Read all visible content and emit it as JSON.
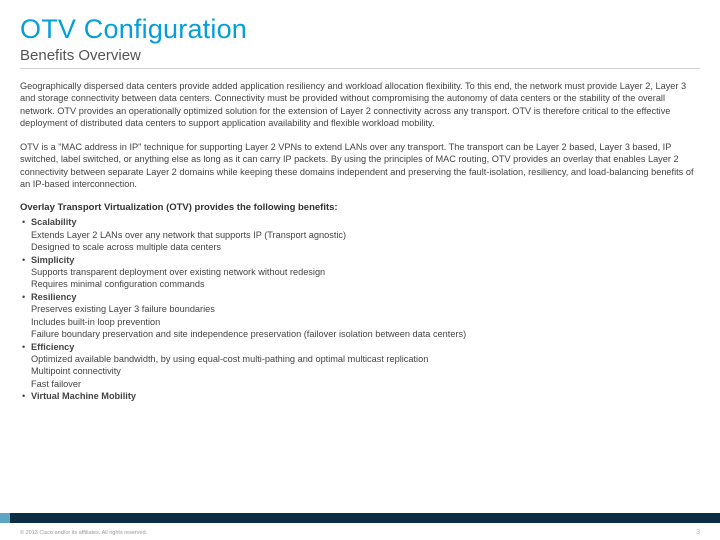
{
  "title": "OTV Configuration",
  "subtitle": "Benefits Overview",
  "paragraphs": [
    "Geographically dispersed data centers provide added application resiliency and workload allocation flexibility. To this end, the network must provide Layer 2, Layer 3 and storage connectivity between data centers. Connectivity must be provided without compromising the autonomy of data centers or the stability of the overall network. OTV provides an operationally optimized solution for the extension of Layer 2 connectivity across any transport. OTV is therefore critical to the effective deployment of distributed data centers to support application availability and flexible workload mobility.",
    "OTV is a \"MAC address in IP\" technique for supporting Layer 2 VPNs to extend LANs over any transport. The transport can be Layer 2 based, Layer 3 based, IP switched, label switched, or anything else as long as it can carry IP packets. By using the principles of MAC routing, OTV provides an overlay that enables Layer 2 connectivity between separate Layer 2 domains while keeping these domains independent and preserving the fault-isolation, resiliency, and load-balancing benefits of an IP-based interconnection."
  ],
  "benefits_header": "Overlay Transport Virtualization (OTV) provides the following benefits:",
  "benefits": [
    {
      "title": "Scalability",
      "lines": [
        "Extends Layer 2 LANs over any network that supports IP (Transport agnostic)",
        "Designed to scale across multiple data centers"
      ]
    },
    {
      "title": "Simplicity",
      "lines": [
        "Supports transparent deployment over existing network without redesign",
        "Requires minimal configuration commands"
      ]
    },
    {
      "title": "Resiliency",
      "lines": [
        "Preserves existing Layer 3 failure boundaries",
        "Includes built-in loop prevention",
        "Failure boundary preservation and site independence preservation (failover isolation between data centers)"
      ]
    },
    {
      "title": "Efficiency",
      "lines": [
        "Optimized available bandwidth, by using equal-cost multi-pathing and optimal multicast replication",
        "Multipoint connectivity",
        "Fast failover"
      ]
    },
    {
      "title": "Virtual Machine Mobility",
      "lines": []
    }
  ],
  "footer": {
    "copyright": "© 2013 Cisco and/or its affiliates. All rights reserved.",
    "page_number": "3",
    "bar_colors": {
      "seg1": "#5aa6c4",
      "seg2": "#0b2e45"
    }
  },
  "colors": {
    "title": "#049fd9",
    "text": "#444444",
    "subtitle": "#555555"
  }
}
